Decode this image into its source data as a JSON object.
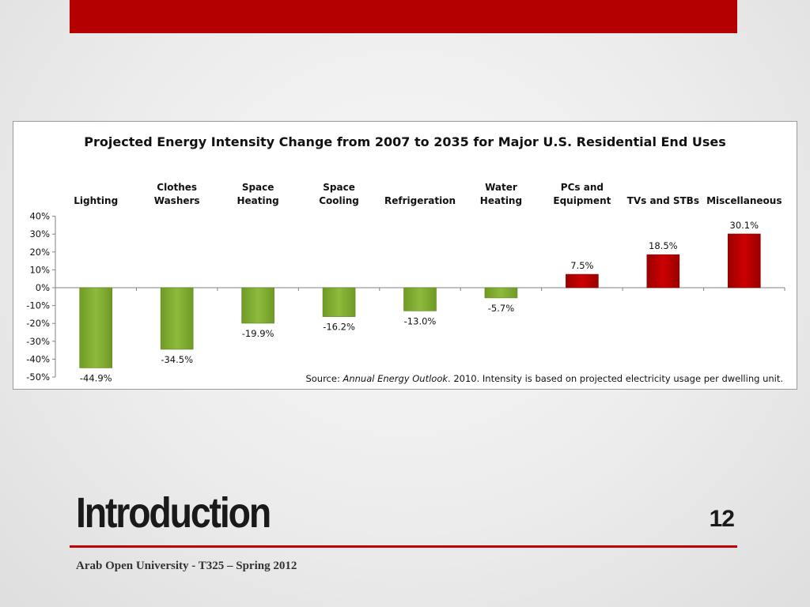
{
  "slide": {
    "title": "Introduction",
    "page_number": "12",
    "footer": "Arab Open University - T325 – Spring 2012"
  },
  "colors": {
    "accent_bar": "#b50000",
    "footer_rule": "#c00000",
    "negative_bar": "#8dbb3c",
    "positive_bar": "#cc0000"
  },
  "chart_data": {
    "type": "bar",
    "title": "Projected Energy Intensity Change from 2007 to 2035 for Major U.S. Residential End Uses",
    "categories": [
      [
        "Lighting"
      ],
      [
        "Clothes",
        "Washers"
      ],
      [
        "Space",
        "Heating"
      ],
      [
        "Space",
        "Cooling"
      ],
      [
        "Refrigeration"
      ],
      [
        "Water",
        "Heating"
      ],
      [
        "PCs and",
        "Equipment"
      ],
      [
        "TVs and STBs"
      ],
      [
        "Miscellaneous"
      ]
    ],
    "values": [
      -44.9,
      -34.5,
      -19.9,
      -16.2,
      -13.0,
      -5.7,
      7.5,
      18.5,
      30.1
    ],
    "value_labels": [
      "-44.9%",
      "-34.5%",
      "-19.9%",
      "-16.2%",
      "-13.0%",
      "-5.7%",
      "7.5%",
      "18.5%",
      "30.1%"
    ],
    "yticks": [
      "40%",
      "30%",
      "20%",
      "10%",
      "0%",
      "-10%",
      "-20%",
      "-30%",
      "-40%",
      "-50%"
    ],
    "ylim": [
      -50,
      40
    ],
    "ytick_step": 10,
    "grid": false,
    "legend": "none",
    "source_prefix": "Source:",
    "source_italic": "Annual Energy Outlook",
    "source_suffix": ". 2010.  Intensity is based on projected electricity usage per dwelling unit."
  }
}
